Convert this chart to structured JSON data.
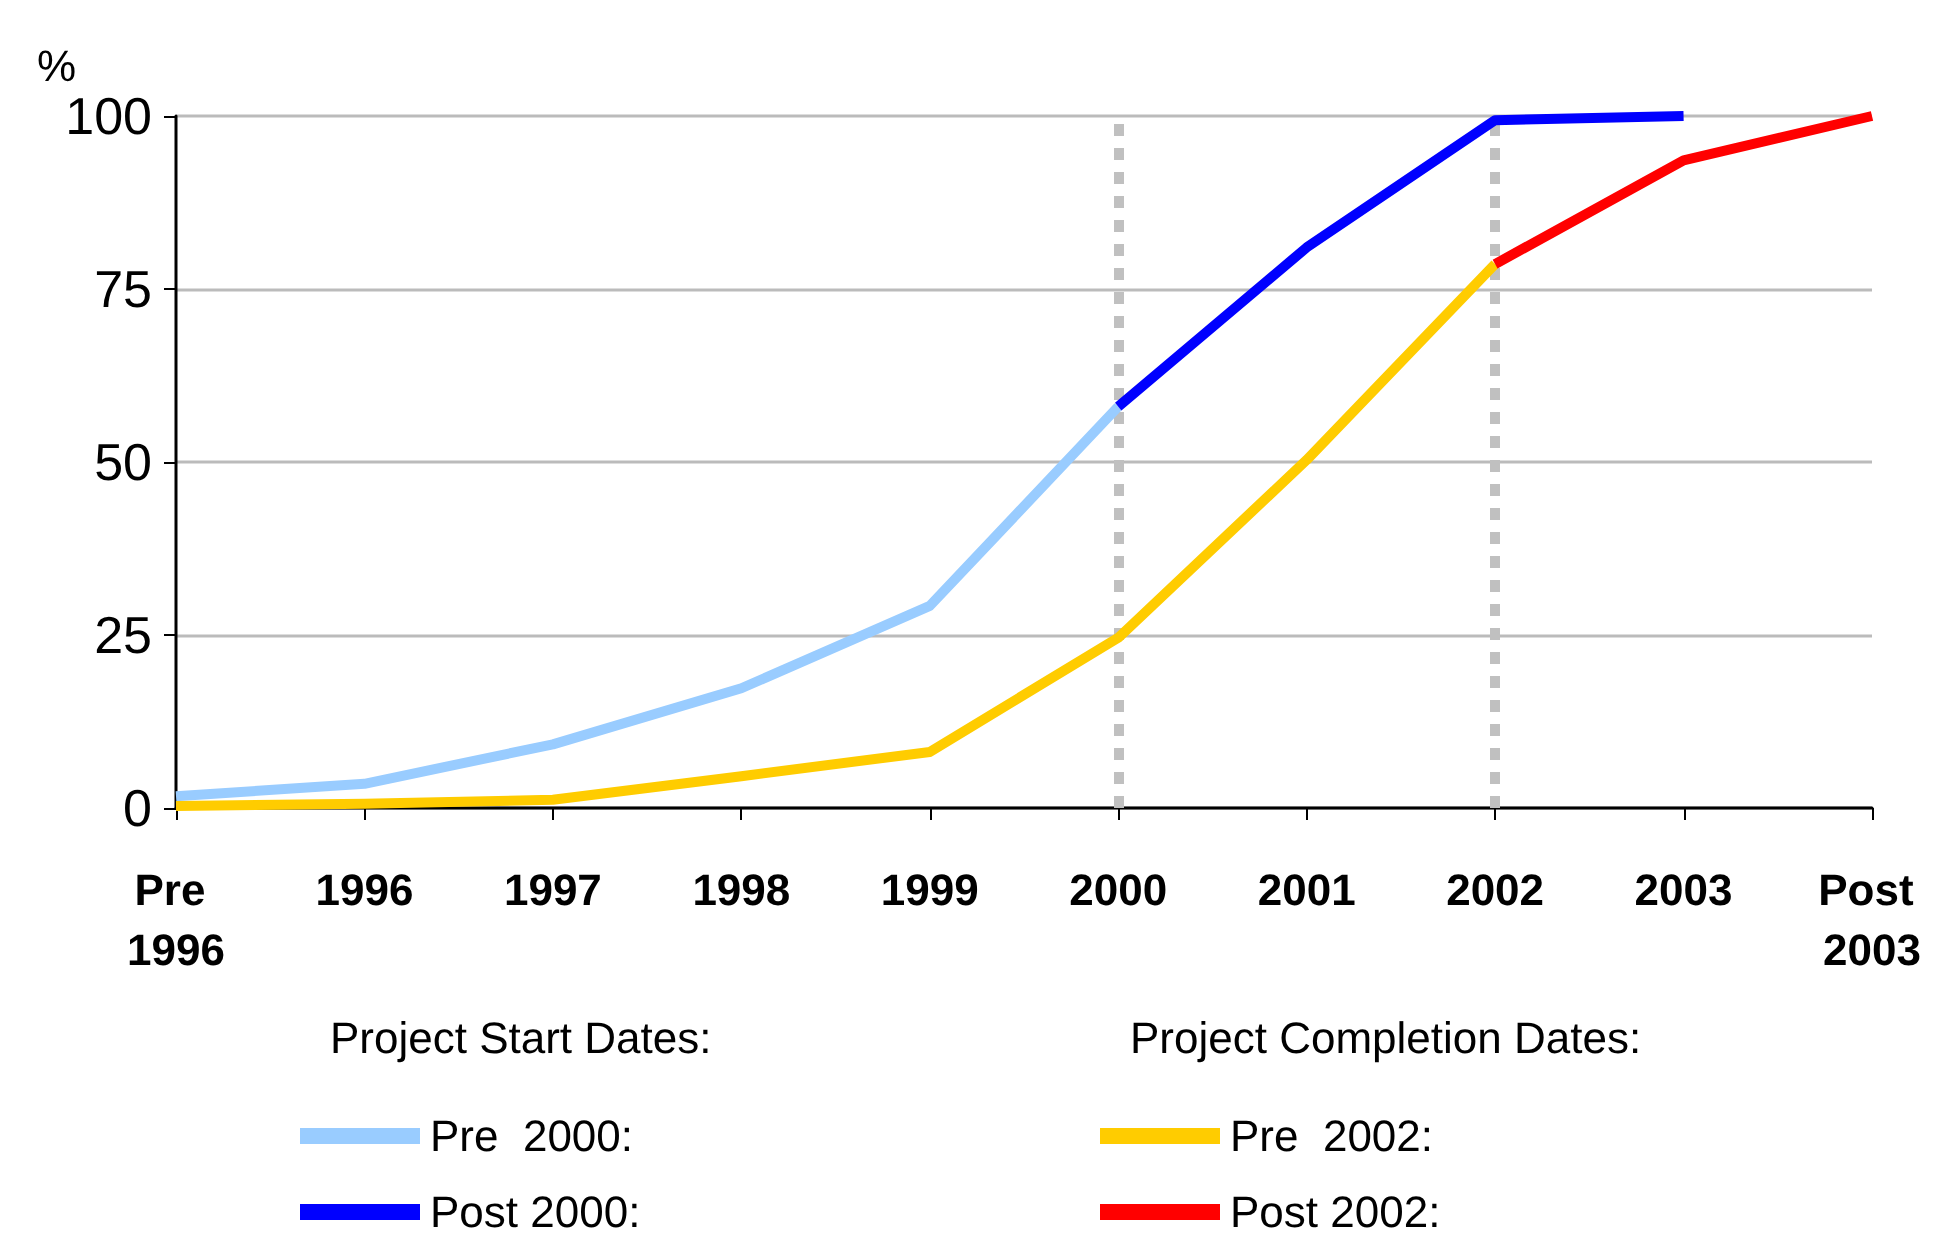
{
  "chart_data": {
    "type": "line",
    "ylabel": "%",
    "categories": [
      "Pre 1996",
      "1996",
      "1997",
      "1998",
      "1999",
      "2000",
      "2001",
      "2002",
      "2003",
      "Post 2003"
    ],
    "series": [
      {
        "name": "Pre  2000:",
        "color": "#99ccff",
        "values": [
          1.7,
          3.5,
          9.2,
          17.3,
          29.2,
          58,
          null,
          null,
          null,
          null
        ]
      },
      {
        "name": "Post 2000:",
        "color": "#0000ff",
        "values": [
          null,
          null,
          null,
          null,
          null,
          58,
          81,
          99.4,
          100,
          null
        ]
      },
      {
        "name": "Pre  2002:",
        "color": "#ffcc00",
        "values": [
          0.3,
          0.6,
          1.2,
          4.6,
          8.1,
          24.6,
          50.3,
          78.6,
          null,
          null
        ]
      },
      {
        "name": "Post 2002:",
        "color": "#ff0000",
        "values": [
          null,
          null,
          null,
          null,
          null,
          null,
          null,
          78.6,
          93.6,
          100
        ]
      }
    ],
    "ylim": [
      0,
      100
    ],
    "yticks": [
      0,
      25,
      50,
      75,
      100
    ],
    "grid": "y",
    "ref_lines": [
      {
        "axis": "x",
        "value": "2000",
        "color": "#c0c0c0",
        "line_style": "dotted"
      },
      {
        "axis": "x",
        "value": "2002",
        "color": "#c0c0c0",
        "line_style": "dotted"
      }
    ],
    "annotations": [
      "Project Start Dates:",
      "Project Completion Dates:"
    ],
    "legend": "bottom",
    "marker": "none",
    "line_style": "solid"
  }
}
